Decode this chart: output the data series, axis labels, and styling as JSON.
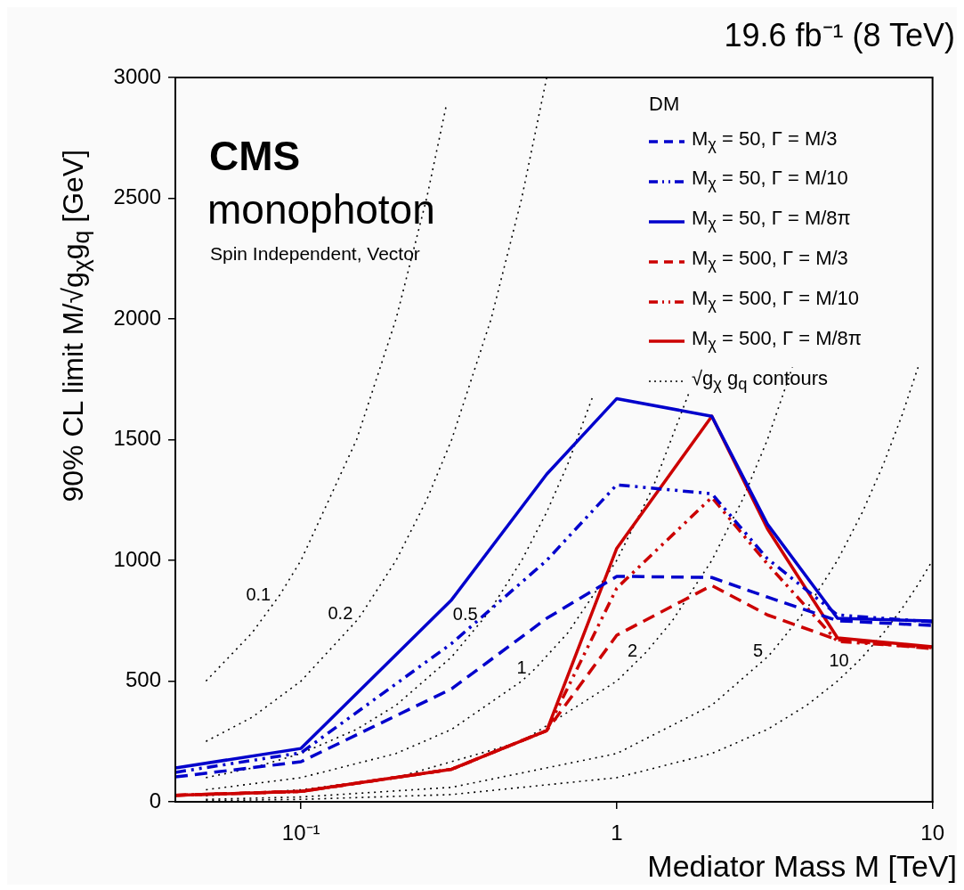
{
  "chart_data": {
    "type": "line",
    "title": "19.6 fb⁻¹ (8 TeV)",
    "xlabel": "Mediator Mass M [TeV]",
    "ylabel": "90% CL limit M/√g$_{χ}$g$_{q}$ [GeV]",
    "legend_title": "DM",
    "legend": "top right",
    "grid": false,
    "log": "x",
    "xlim": [
      0.04,
      10
    ],
    "xticks": [
      {
        "value": 0.1,
        "label": "10⁻¹"
      },
      1,
      10
    ],
    "ylim": [
      0,
      3000
    ],
    "yticks": [
      0,
      500,
      1000,
      1500,
      2000,
      2500,
      3000
    ],
    "series": [
      {
        "name": "M$_{χ}$ = 50, Γ = M/3",
        "color": "#0000cc",
        "line_style": "dashed",
        "x": [
          0.04,
          0.1,
          0.3,
          0.6,
          1,
          2,
          3,
          5,
          10
        ],
        "values": [
          103,
          166,
          468,
          760,
          934,
          929,
          848,
          750,
          730
        ]
      },
      {
        "name": "M$_{χ}$ = 50, Γ = M/10",
        "color": "#0000cc",
        "line_style": "dashdot",
        "x": [
          0.04,
          0.1,
          0.3,
          0.6,
          1,
          2,
          3,
          5,
          10
        ],
        "values": [
          122,
          203,
          656,
          1000,
          1313,
          1276,
          1007,
          774,
          745
        ]
      },
      {
        "name": "M$_{χ}$ = 50, Γ = M/8π",
        "color": "#0000cc",
        "line_style": "solid",
        "x": [
          0.04,
          0.1,
          0.3,
          0.6,
          1,
          2,
          3,
          5,
          10
        ],
        "values": [
          140,
          221,
          837,
          1357,
          1670,
          1597,
          1150,
          760,
          749
        ]
      },
      {
        "name": "M$_{χ}$ = 500, Γ = M/3",
        "color": "#cc0000",
        "line_style": "dashed",
        "x": [
          0.04,
          0.1,
          0.3,
          0.6,
          1,
          2,
          3,
          5,
          10
        ],
        "values": [
          27,
          43,
          135,
          295,
          690,
          896,
          774,
          671,
          634
        ]
      },
      {
        "name": "M$_{χ}$ = 500, Γ = M/10",
        "color": "#cc0000",
        "line_style": "dashdot",
        "x": [
          0.04,
          0.1,
          0.3,
          0.6,
          1,
          2,
          3,
          5,
          10
        ],
        "values": [
          27,
          43,
          135,
          295,
          885,
          1261,
          985,
          664,
          638
        ]
      },
      {
        "name": "M$_{χ}$ = 500, Γ = M/8π",
        "color": "#cc0000",
        "line_style": "solid",
        "x": [
          0.04,
          0.1,
          0.3,
          0.6,
          1,
          2,
          3,
          5,
          10
        ],
        "values": [
          27,
          43,
          135,
          295,
          1050,
          1597,
          1131,
          679,
          642
        ]
      },
      {
        "name": "√g$_{χ}$ g$_{q}$ contours",
        "color": "#000000",
        "line_style": "dotted",
        "x": [
          0.05,
          0.07,
          0.0856,
          0.1,
          0.15,
          0.2,
          0.25,
          0.288
        ],
        "values": [
          500,
          700,
          856,
          1000,
          1500,
          2000,
          2500,
          2880
        ]
      },
      {
        "color": "#000000",
        "line_style": "dotted",
        "x": [
          0.05,
          0.07,
          0.1,
          0.15,
          0.1556,
          0.2,
          0.25,
          0.3,
          0.4,
          0.5,
          0.6
        ],
        "values": [
          250,
          350,
          500,
          750,
          778,
          1000,
          1250,
          1500,
          2000,
          2500,
          3000
        ]
      },
      {
        "color": "#000000",
        "line_style": "dotted",
        "x": [
          0.05,
          0.07,
          0.1,
          0.15,
          0.2,
          0.3,
          0.387,
          0.4,
          0.5,
          0.6,
          0.7,
          0.84
        ],
        "values": [
          100,
          140,
          200,
          300,
          400,
          600,
          774,
          800,
          1000,
          1200,
          1400,
          1680
        ]
      },
      {
        "color": "#000000",
        "line_style": "dotted",
        "x": [
          0.05,
          0.1,
          0.2,
          0.3,
          0.5,
          0.553,
          0.7,
          1,
          1.3,
          1.7
        ],
        "values": [
          50,
          100,
          200,
          300,
          500,
          553,
          700,
          1000,
          1300,
          1700
        ]
      },
      {
        "color": "#000000",
        "line_style": "dotted",
        "x": [
          0.05,
          0.1,
          0.2,
          0.5,
          1,
          1.24,
          1.5,
          2,
          2.5,
          3,
          3.6
        ],
        "values": [
          25,
          50,
          100,
          250,
          500,
          620,
          750,
          1000,
          1250,
          1500,
          1800
        ]
      },
      {
        "color": "#000000",
        "line_style": "dotted",
        "x": [
          0.05,
          0.1,
          0.3,
          1,
          2,
          3,
          3.1,
          4,
          5,
          6,
          7,
          8,
          9
        ],
        "values": [
          10,
          20,
          60,
          200,
          400,
          600,
          620,
          800,
          1000,
          1200,
          1400,
          1600,
          1800
        ]
      },
      {
        "color": "#000000",
        "line_style": "dotted",
        "x": [
          0.05,
          0.1,
          0.3,
          1,
          2,
          3,
          4,
          5,
          5.8,
          6,
          7,
          8,
          9,
          10
        ],
        "values": [
          5,
          10,
          30,
          100,
          200,
          300,
          400,
          500,
          580,
          600,
          700,
          800,
          900,
          1000
        ]
      }
    ],
    "annotations": [
      "CMS",
      "monophoton",
      "Spin Independent, Vector",
      {
        "text": "0.1",
        "x": 0.0856,
        "y": 856
      },
      {
        "text": "0.2",
        "x": 0.1556,
        "y": 778
      },
      {
        "text": "0.5",
        "x": 0.387,
        "y": 774
      },
      {
        "text": "1",
        "x": 0.553,
        "y": 553
      },
      {
        "text": "2",
        "x": 1.24,
        "y": 620
      },
      {
        "text": "5",
        "x": 3.1,
        "y": 620
      },
      {
        "text": "10",
        "x": 5.8,
        "y": 580
      }
    ]
  }
}
